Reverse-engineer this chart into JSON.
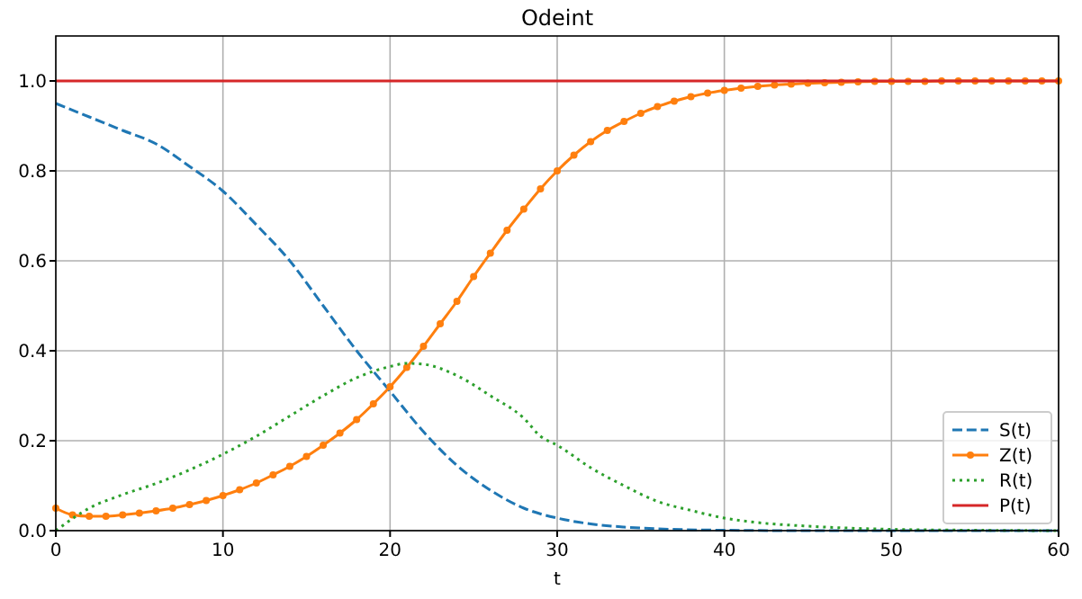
{
  "chart_data": {
    "type": "line",
    "title": "Odeint",
    "xlabel": "t",
    "xlim": [
      0,
      60
    ],
    "ylim": [
      0,
      1.1
    ],
    "xticks": [
      0,
      10,
      20,
      30,
      40,
      50,
      60
    ],
    "yticks": [
      {
        "value": 0,
        "label": "0.0"
      },
      {
        "value": 0.2,
        "label": "0.2"
      },
      {
        "value": 0.4,
        "label": "0.4"
      },
      {
        "value": 0.6,
        "label": "0.6"
      },
      {
        "value": 0.8,
        "label": "0.8"
      },
      {
        "value": 1,
        "label": "1.0"
      }
    ],
    "grid": true,
    "legend": "bottom right",
    "series": [
      {
        "name": "S(t)",
        "color": "#1f77b4",
        "line_style": "dashed",
        "marker": "none",
        "x": [
          0,
          2,
          4,
          6,
          8,
          10,
          12,
          14,
          16,
          18,
          20,
          22,
          24,
          26,
          28,
          30,
          32,
          34,
          36,
          40,
          45,
          50,
          60
        ],
        "values": [
          0.95,
          0.92,
          0.89,
          0.86,
          0.81,
          0.755,
          0.68,
          0.6,
          0.5,
          0.4,
          0.31,
          0.22,
          0.145,
          0.09,
          0.05,
          0.028,
          0.015,
          0.008,
          0.004,
          0.001,
          0,
          0,
          0
        ]
      },
      {
        "name": "Z(t)",
        "color": "#ff7f0e",
        "line_style": "solid",
        "marker": "circle",
        "x": [
          0,
          1,
          2,
          3,
          4,
          5,
          6,
          7,
          8,
          9,
          10,
          11,
          12,
          13,
          14,
          15,
          16,
          17,
          18,
          19,
          20,
          21,
          22,
          23,
          24,
          25,
          26,
          27,
          28,
          29,
          30,
          31,
          32,
          33,
          34,
          35,
          36,
          37,
          38,
          39,
          40,
          41,
          42,
          43,
          44,
          45,
          46,
          47,
          48,
          49,
          50,
          51,
          52,
          53,
          54,
          55,
          56,
          57,
          58,
          59,
          60
        ],
        "values": [
          0.05,
          0.035,
          0.032,
          0.032,
          0.035,
          0.039,
          0.044,
          0.05,
          0.058,
          0.067,
          0.078,
          0.091,
          0.106,
          0.124,
          0.143,
          0.165,
          0.19,
          0.217,
          0.247,
          0.282,
          0.32,
          0.363,
          0.41,
          0.46,
          0.51,
          0.565,
          0.617,
          0.668,
          0.715,
          0.76,
          0.8,
          0.835,
          0.865,
          0.89,
          0.91,
          0.928,
          0.943,
          0.955,
          0.965,
          0.973,
          0.979,
          0.984,
          0.988,
          0.991,
          0.993,
          0.995,
          0.996,
          0.997,
          0.998,
          0.999,
          0.999,
          0.999,
          0.999,
          1,
          1,
          1,
          1,
          1,
          1,
          1,
          1
        ]
      },
      {
        "name": "R(t)",
        "color": "#2ca02c",
        "line_style": "dotted",
        "marker": "none",
        "x": [
          0,
          2,
          4,
          6,
          8,
          10,
          12,
          14,
          16,
          18,
          20,
          21,
          22,
          24,
          26,
          28,
          29,
          30,
          32,
          34,
          36,
          38,
          40,
          42,
          45,
          50,
          55,
          60
        ],
        "values": [
          0,
          0.05,
          0.08,
          0.105,
          0.135,
          0.17,
          0.21,
          0.255,
          0.3,
          0.34,
          0.365,
          0.372,
          0.37,
          0.345,
          0.3,
          0.25,
          0.21,
          0.19,
          0.14,
          0.1,
          0.065,
          0.045,
          0.028,
          0.018,
          0.01,
          0.003,
          0.001,
          0
        ]
      },
      {
        "name": "P(t)",
        "color": "#d62728",
        "line_style": "solid",
        "marker": "none",
        "x": [
          0,
          60
        ],
        "values": [
          1,
          1
        ]
      }
    ]
  }
}
